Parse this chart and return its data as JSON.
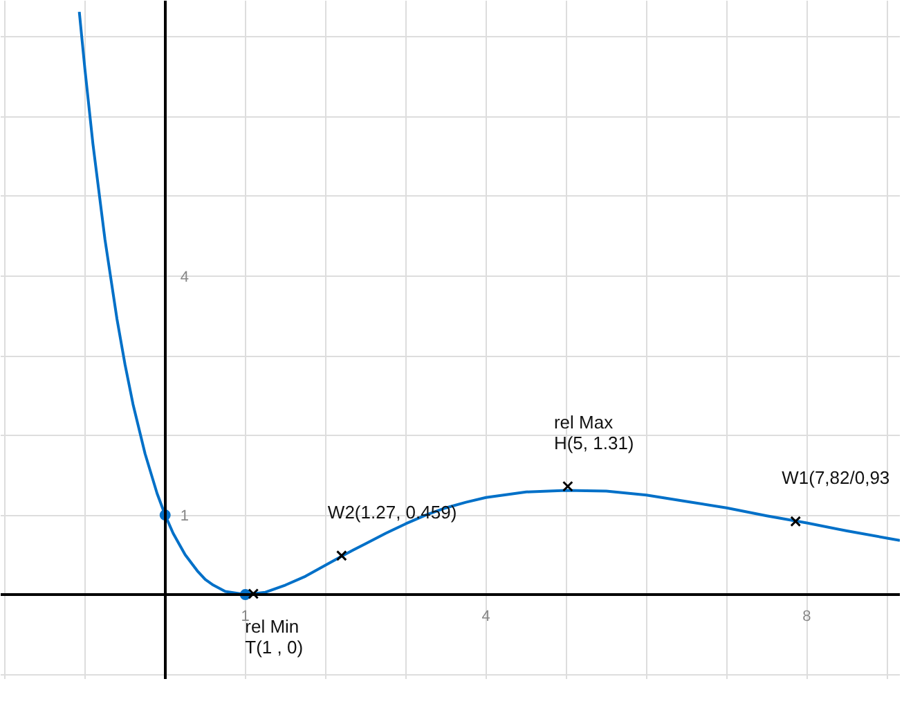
{
  "chart_data": {
    "type": "line",
    "xlim": [
      -2.05,
      9.16
    ],
    "ylim": [
      -1.06,
      7.46
    ],
    "xticks": [
      {
        "value": -2,
        "label": null
      },
      {
        "value": -1,
        "label": null
      },
      {
        "value": 0,
        "label": null
      },
      1,
      {
        "value": 2,
        "label": null
      },
      {
        "value": 3,
        "label": null
      },
      4,
      {
        "value": 5,
        "label": null
      },
      {
        "value": 6,
        "label": null
      },
      {
        "value": 7,
        "label": null
      },
      8,
      {
        "value": 9,
        "label": null
      }
    ],
    "yticks": [
      {
        "value": -1,
        "label": null
      },
      {
        "value": 0,
        "label": null
      },
      1,
      {
        "value": 2,
        "label": null
      },
      {
        "value": 3,
        "label": null
      },
      4,
      {
        "value": 5,
        "label": null
      },
      {
        "value": 6,
        "label": null
      },
      {
        "value": 7,
        "label": null
      }
    ],
    "grid": true,
    "series": [
      {
        "color": "#0070c8",
        "x": [
          -1.07,
          -1,
          -0.9,
          -0.75,
          -0.6,
          -0.5,
          -0.4,
          -0.25,
          -0.1,
          0,
          0.1,
          0.25,
          0.4,
          0.5,
          0.6,
          0.75,
          1,
          1.25,
          1.5,
          1.75,
          2,
          2.25,
          2.5,
          2.75,
          3,
          3.25,
          3.5,
          3.75,
          4,
          4.5,
          5,
          5.5,
          6,
          6.5,
          7,
          7.5,
          8,
          8.5,
          9,
          9.16
        ],
        "values": [
          7.32,
          6.6,
          5.66,
          4.46,
          3.46,
          2.89,
          2.39,
          1.77,
          1.27,
          1,
          0.77,
          0.5,
          0.3,
          0.19,
          0.12,
          0.04,
          0,
          0.03,
          0.12,
          0.23,
          0.37,
          0.51,
          0.64,
          0.77,
          0.89,
          1,
          1.09,
          1.16,
          1.22,
          1.29,
          1.31,
          1.3,
          1.25,
          1.17,
          1.09,
          0.99,
          0.9,
          0.8,
          0.71,
          0.68
        ]
      },
      {
        "type": "scatter",
        "marker": "circle",
        "color": "#0070c8",
        "x": [
          0,
          1
        ],
        "values": [
          1,
          0
        ]
      },
      {
        "type": "scatter",
        "marker": "cross",
        "color": "#000000",
        "x": [
          1.1,
          2.2,
          5.02,
          7.86
        ],
        "values": [
          0.01,
          0.49,
          1.36,
          0.92
        ]
      }
    ],
    "annotations": [
      {
        "text": "rel Min\nT(1 , 0)",
        "x": 1.1,
        "y": 0.01
      },
      {
        "text": "W2(1.27, 0.459)",
        "x": 2.2,
        "y": 0.49
      },
      {
        "text": "rel Max\nH(5, 1.31)",
        "x": 5.02,
        "y": 1.36
      },
      {
        "text": "W1(7,82/0,93",
        "x": 7.86,
        "y": 0.92
      }
    ]
  }
}
